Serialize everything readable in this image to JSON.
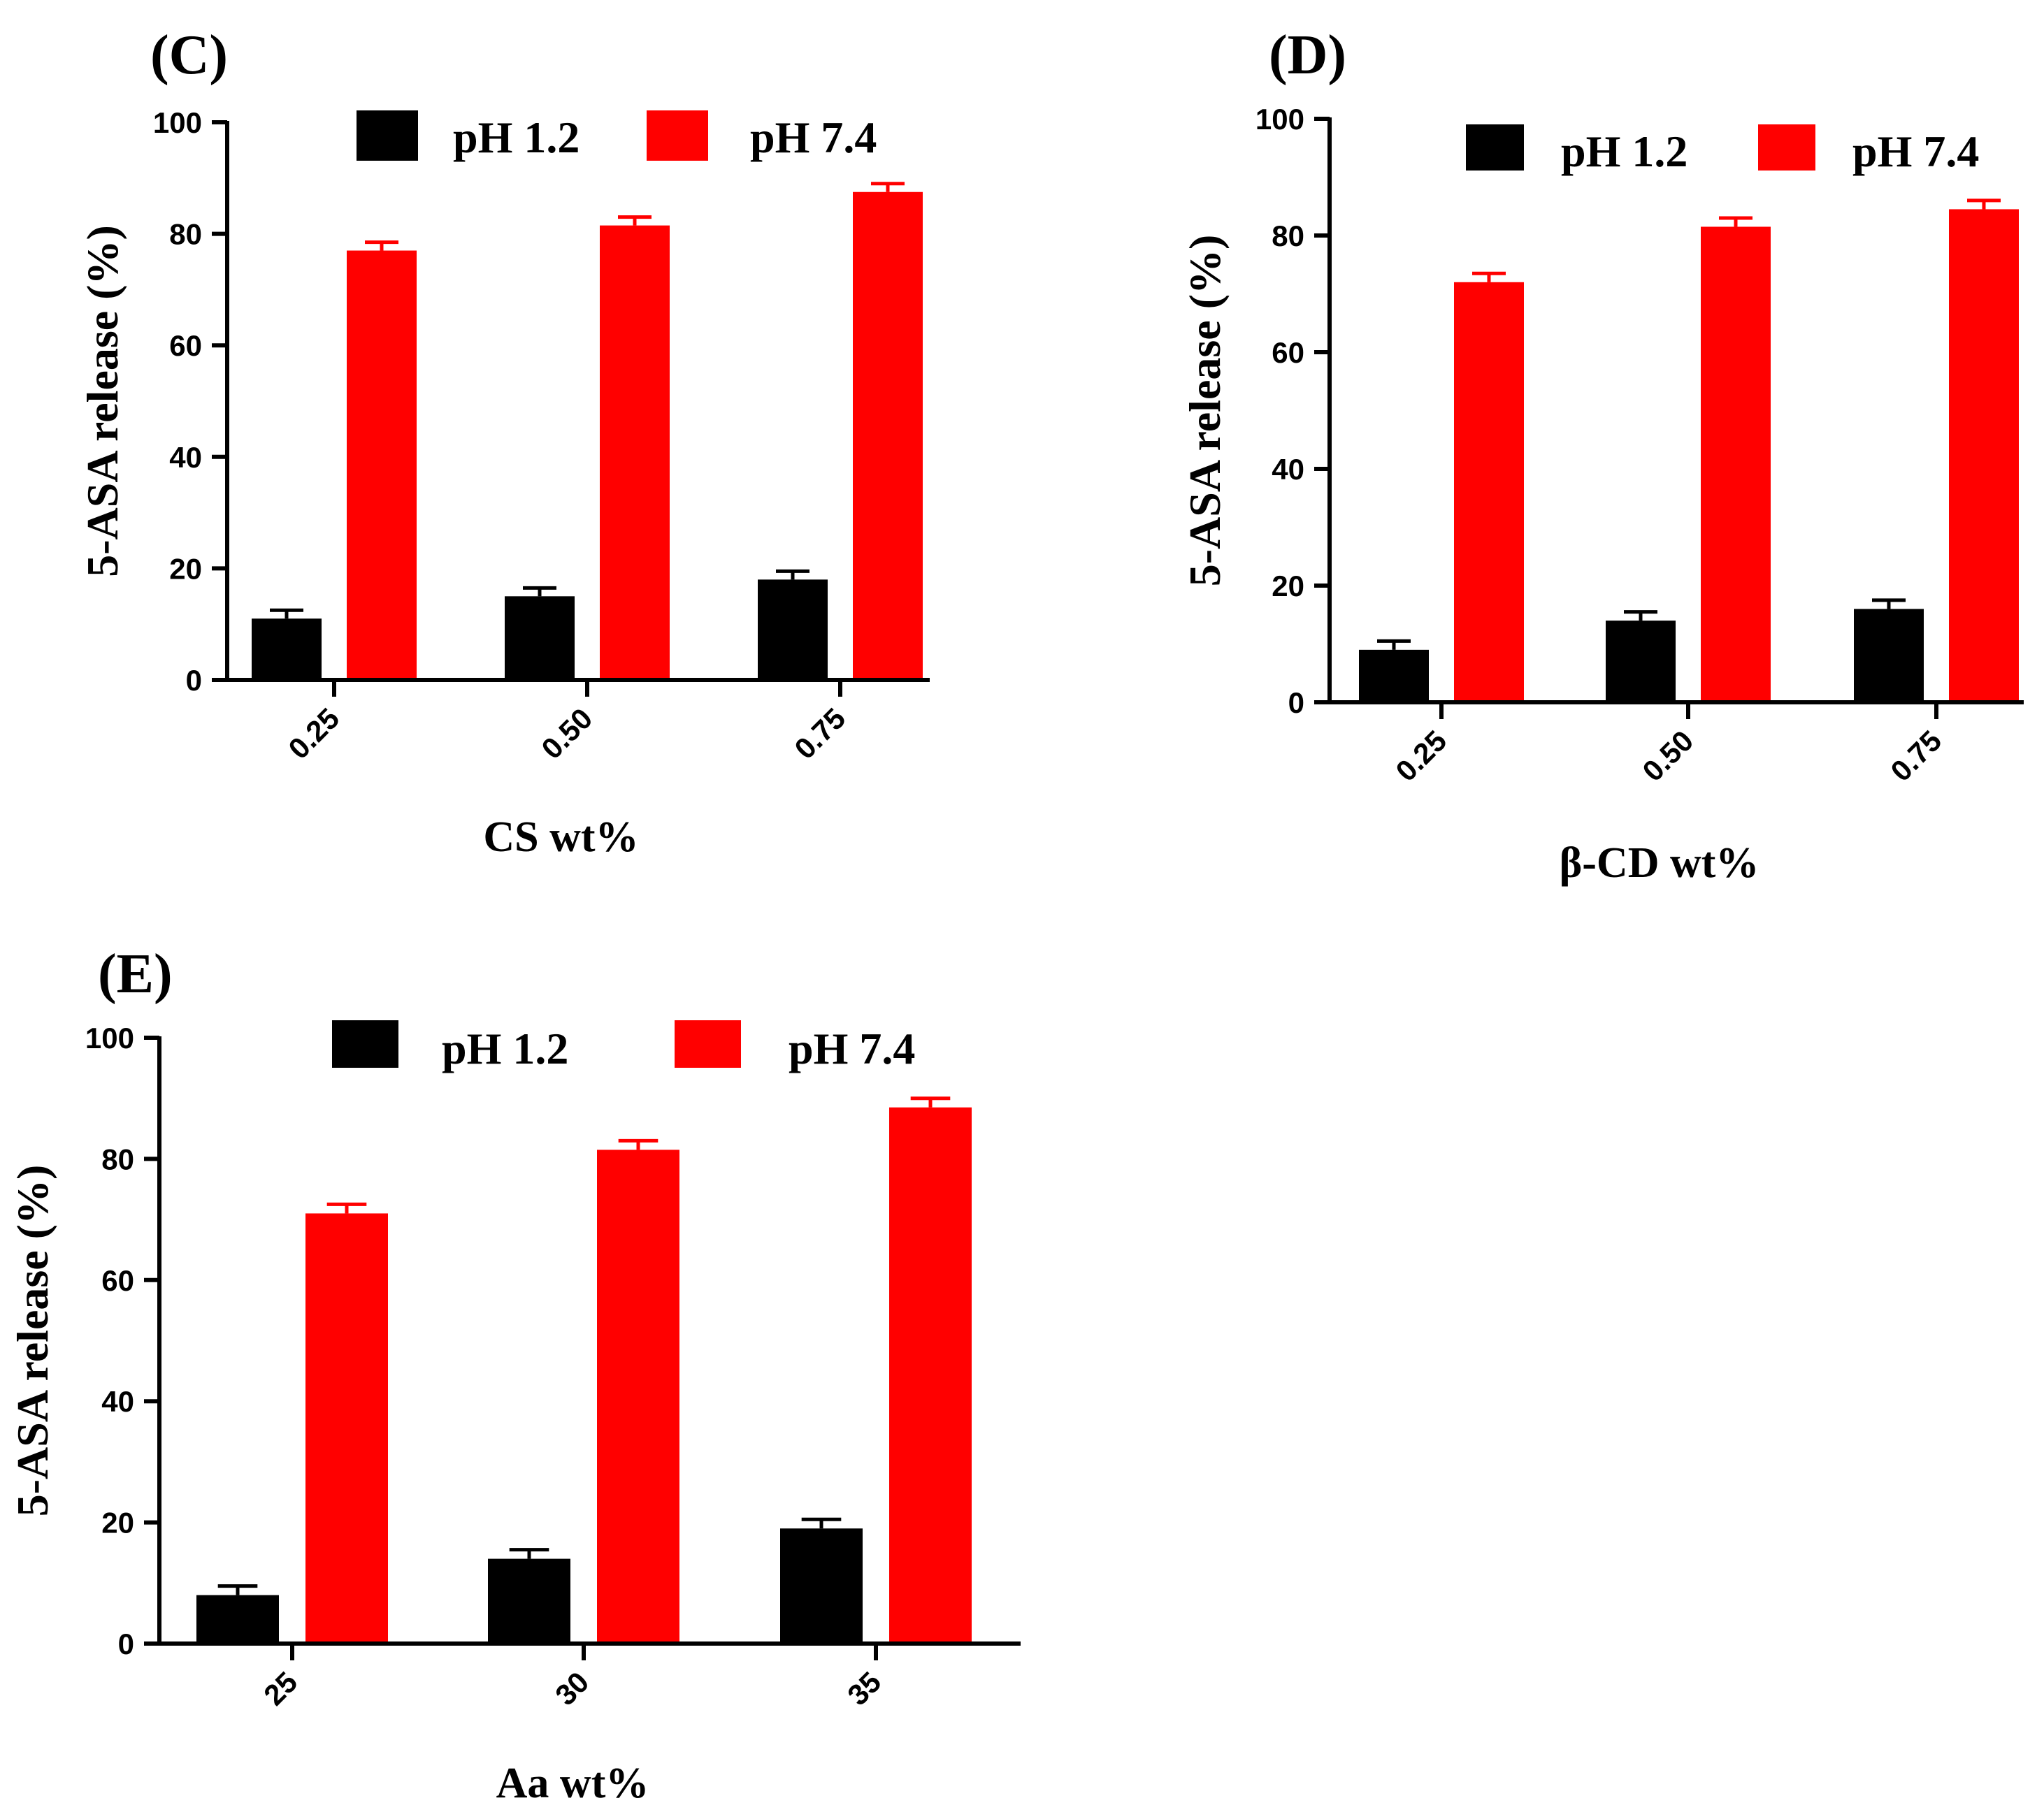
{
  "figure": {
    "colors": {
      "pH 1.2": "#000000",
      "pH 7.4": "#ff0000"
    }
  },
  "chart_data": [
    {
      "panel": "(C)",
      "type": "bar",
      "categories": [
        "0.25",
        "0.50",
        "0.75"
      ],
      "xlabel": "CS wt%",
      "ylabel": "5-ASA release (%)",
      "ylim": [
        0,
        100
      ],
      "yticks": [
        0,
        20,
        40,
        60,
        80,
        100
      ],
      "legend": "top",
      "series": [
        {
          "name": "pH 1.2",
          "color": "#000000",
          "values": [
            11,
            15,
            18
          ],
          "errors": [
            1.5,
            1.5,
            1.5
          ]
        },
        {
          "name": "pH 7.4",
          "color": "#ff0000",
          "values": [
            77,
            81.5,
            87.5
          ],
          "errors": [
            1.5,
            1.5,
            1.5
          ]
        }
      ]
    },
    {
      "panel": "(D)",
      "type": "bar",
      "categories": [
        "0.25",
        "0.50",
        "0.75"
      ],
      "xlabel": "β-CD wt%",
      "ylabel": "5-ASA release (%)",
      "ylim": [
        0,
        100
      ],
      "yticks": [
        0,
        20,
        40,
        60,
        80,
        100
      ],
      "legend": "top",
      "series": [
        {
          "name": "pH 1.2",
          "color": "#000000",
          "values": [
            9,
            14,
            16
          ],
          "errors": [
            1.5,
            1.5,
            1.5
          ]
        },
        {
          "name": "pH 7.4",
          "color": "#ff0000",
          "values": [
            72,
            81.5,
            84.5
          ],
          "errors": [
            1.5,
            1.5,
            1.5
          ]
        }
      ]
    },
    {
      "panel": "(E)",
      "type": "bar",
      "categories": [
        "25",
        "30",
        "35"
      ],
      "xlabel": "Aa wt%",
      "ylabel": "5-ASA release (%)",
      "ylim": [
        0,
        100
      ],
      "yticks": [
        0,
        20,
        40,
        60,
        80,
        100
      ],
      "legend": "top",
      "series": [
        {
          "name": "pH 1.2",
          "color": "#000000",
          "values": [
            8,
            14,
            19
          ],
          "errors": [
            1.5,
            1.5,
            1.5
          ]
        },
        {
          "name": "pH 7.4",
          "color": "#ff0000",
          "values": [
            71,
            81.5,
            88.5
          ],
          "errors": [
            1.5,
            1.5,
            1.5
          ]
        }
      ]
    }
  ]
}
